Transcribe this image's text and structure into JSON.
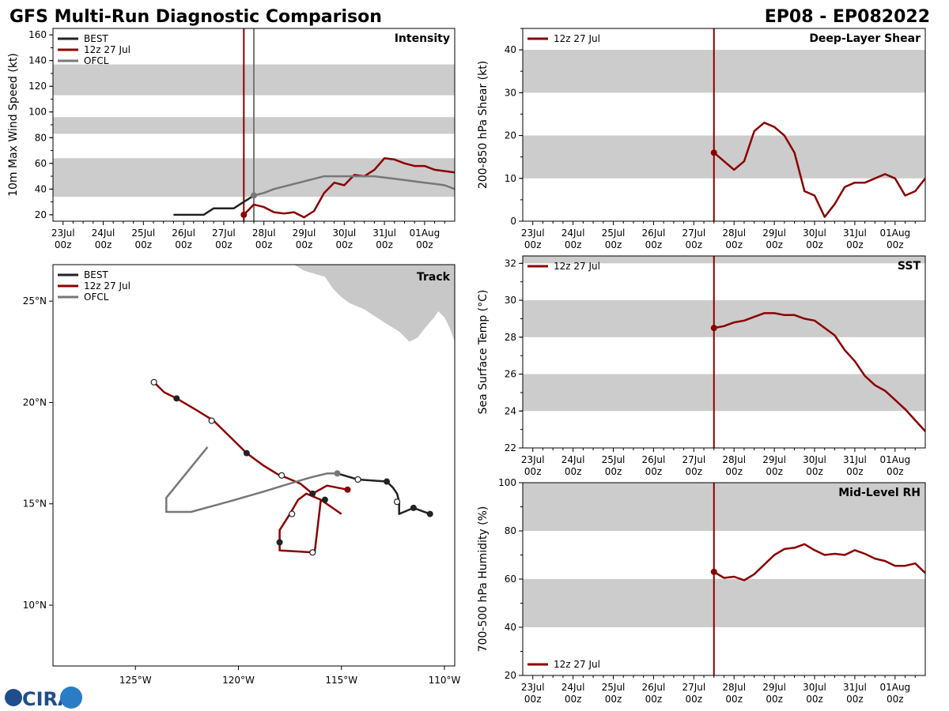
{
  "header": {
    "title_left": "GFS Multi-Run Diagnostic Comparison",
    "title_right": "EP08 - EP082022"
  },
  "logo": {
    "text": "CIRA"
  },
  "colors": {
    "best": "#222222",
    "run": "#8b0000",
    "ofcl": "#777777",
    "band": "#cccccc",
    "land": "#c8c8c8"
  },
  "time_axis": {
    "ticks": [
      {
        "t": 0,
        "label": "23Jul\n00z"
      },
      {
        "t": 24,
        "label": "24Jul\n00z"
      },
      {
        "t": 48,
        "label": "25Jul\n00z"
      },
      {
        "t": 72,
        "label": "26Jul\n00z"
      },
      {
        "t": 96,
        "label": "27Jul\n00z"
      },
      {
        "t": 120,
        "label": "28Jul\n00z"
      },
      {
        "t": 144,
        "label": "29Jul\n00z"
      },
      {
        "t": 168,
        "label": "30Jul\n00z"
      },
      {
        "t": 192,
        "label": "31Jul\n00z"
      },
      {
        "t": 216,
        "label": "01Aug\n00z"
      }
    ]
  },
  "chart_data": [
    {
      "id": "intensity",
      "type": "line",
      "title": "Intensity",
      "ylabel": "10m Max Wind Speed (kt)",
      "xlim": [
        -6,
        234
      ],
      "ylim": [
        15,
        165
      ],
      "yticks": [
        20,
        40,
        60,
        80,
        100,
        120,
        140,
        160
      ],
      "bands": [
        [
          34,
          64
        ],
        [
          83,
          96
        ],
        [
          113,
          137
        ]
      ],
      "vlines": [
        {
          "t": 108,
          "series": "run"
        },
        {
          "t": 114,
          "series": "ofcl"
        }
      ],
      "legend": [
        "BEST",
        "12z 27 Jul",
        "OFCL"
      ],
      "series": [
        {
          "name": "BEST",
          "key": "best",
          "t": [
            66,
            72,
            78,
            84,
            90,
            96,
            102,
            108,
            114
          ],
          "v": [
            20,
            20,
            20,
            20,
            25,
            25,
            25,
            30,
            35
          ]
        },
        {
          "name": "12z 27 Jul",
          "key": "run",
          "t": [
            108,
            114,
            120,
            126,
            132,
            138,
            144,
            150,
            156,
            162,
            168,
            174,
            180,
            186,
            192,
            198,
            204,
            210,
            216,
            222,
            228,
            234
          ],
          "v": [
            20,
            28,
            26,
            22,
            21,
            22,
            18,
            23,
            37,
            45,
            43,
            51,
            50,
            55,
            64,
            63,
            60,
            58,
            58,
            55,
            54,
            53
          ]
        },
        {
          "name": "OFCL",
          "key": "ofcl",
          "t": [
            114,
            120,
            126,
            132,
            138,
            144,
            150,
            156,
            162,
            168,
            174,
            180,
            186,
            192,
            198,
            204,
            210,
            216,
            222,
            228,
            234
          ],
          "v": [
            35,
            37,
            40,
            42,
            44,
            46,
            48,
            50,
            50,
            50,
            50,
            50,
            50,
            49,
            48,
            47,
            46,
            45,
            44,
            43,
            40
          ]
        }
      ],
      "markers": [
        {
          "key": "run",
          "t": 108,
          "v": 20
        },
        {
          "key": "ofcl",
          "t": 114,
          "v": 35
        }
      ]
    },
    {
      "id": "shear",
      "type": "line",
      "title": "Deep-Layer Shear",
      "ylabel": "200-850 hPa Shear (kt)",
      "xlim": [
        -6,
        234
      ],
      "ylim": [
        0,
        45
      ],
      "yticks": [
        0,
        10,
        20,
        30,
        40
      ],
      "bands": [
        [
          10,
          20
        ],
        [
          30,
          40
        ]
      ],
      "vlines": [
        {
          "t": 108,
          "series": "run"
        }
      ],
      "legend": [
        "12z 27 Jul"
      ],
      "series": [
        {
          "name": "12z 27 Jul",
          "key": "run",
          "t": [
            108,
            114,
            120,
            126,
            132,
            138,
            144,
            150,
            156,
            162,
            168,
            174,
            180,
            186,
            192,
            198,
            204,
            210,
            216,
            222,
            228,
            234
          ],
          "v": [
            16,
            14,
            12,
            14,
            21,
            23,
            22,
            20,
            16,
            7,
            6,
            1,
            4,
            8,
            9,
            9,
            10,
            11,
            10,
            6,
            7,
            10
          ]
        }
      ],
      "markers": [
        {
          "key": "run",
          "t": 108,
          "v": 16
        }
      ]
    },
    {
      "id": "sst",
      "type": "line",
      "title": "SST",
      "ylabel": "Sea Surface Temp (°C)",
      "xlim": [
        -6,
        234
      ],
      "ylim": [
        22,
        32.4
      ],
      "yticks": [
        22,
        24,
        26,
        28,
        30,
        32
      ],
      "bands": [
        [
          24,
          26
        ],
        [
          28,
          30
        ],
        [
          32,
          33
        ]
      ],
      "vlines": [
        {
          "t": 108,
          "series": "run"
        }
      ],
      "legend": [
        "12z 27 Jul"
      ],
      "series": [
        {
          "name": "12z 27 Jul",
          "key": "run",
          "t": [
            108,
            114,
            120,
            126,
            132,
            138,
            144,
            150,
            156,
            162,
            168,
            174,
            180,
            186,
            192,
            198,
            204,
            210,
            216,
            222,
            228,
            234
          ],
          "v": [
            28.5,
            28.6,
            28.8,
            28.9,
            29.1,
            29.3,
            29.3,
            29.2,
            29.2,
            29.0,
            28.9,
            28.5,
            28.1,
            27.3,
            26.7,
            25.9,
            25.4,
            25.1,
            24.6,
            24.1,
            23.5,
            22.9
          ]
        }
      ],
      "markers": [
        {
          "key": "run",
          "t": 108,
          "v": 28.5
        }
      ]
    },
    {
      "id": "rh",
      "type": "line",
      "title": "Mid-Level RH",
      "ylabel": "700-500 hPa Humidity (%)",
      "xlim": [
        -6,
        234
      ],
      "ylim": [
        20,
        100
      ],
      "yticks": [
        20,
        40,
        60,
        80,
        100
      ],
      "bands": [
        [
          40,
          60
        ],
        [
          80,
          100
        ]
      ],
      "vlines": [
        {
          "t": 108,
          "series": "run"
        }
      ],
      "legend": [
        "12z 27 Jul"
      ],
      "legend_position": "bottom-left",
      "series": [
        {
          "name": "12z 27 Jul",
          "key": "run",
          "t": [
            108,
            114,
            120,
            126,
            132,
            138,
            144,
            150,
            156,
            162,
            168,
            174,
            180,
            186,
            192,
            198,
            204,
            210,
            216,
            222,
            228,
            234
          ],
          "v": [
            63,
            60.5,
            61,
            59.5,
            62,
            66,
            70,
            72.5,
            73,
            74.5,
            72,
            70,
            70.5,
            70,
            72,
            70.5,
            68.5,
            67.5,
            65.5,
            65.5,
            66.5,
            62.5
          ]
        }
      ],
      "markers": [
        {
          "key": "run",
          "t": 108,
          "v": 63
        }
      ]
    },
    {
      "id": "track",
      "type": "map",
      "title": "Track",
      "lon_range": [
        -129,
        -109.5
      ],
      "lat_range": [
        7,
        26.8
      ],
      "xticks": [
        {
          "v": -125,
          "label": "125°W"
        },
        {
          "v": -120,
          "label": "120°W"
        },
        {
          "v": -115,
          "label": "115°W"
        },
        {
          "v": -110,
          "label": "110°W"
        }
      ],
      "yticks": [
        {
          "v": 10,
          "label": "10°N"
        },
        {
          "v": 15,
          "label": "15°N"
        },
        {
          "v": 20,
          "label": "20°N"
        },
        {
          "v": 25,
          "label": "25°N"
        }
      ],
      "legend": [
        "BEST",
        "12z 27 Jul",
        "OFCL"
      ],
      "series": [
        {
          "name": "BEST",
          "key": "best",
          "lon": [
            -110.7,
            -111.5,
            -112.2,
            -112.2,
            -112.3,
            -112.5,
            -112.8,
            -114.2,
            -115.2
          ],
          "lat": [
            14.5,
            14.8,
            14.5,
            15.1,
            15.5,
            15.8,
            16.1,
            16.2,
            16.5
          ],
          "filled": [
            [
              -110.7,
              14.5
            ],
            [
              -111.5,
              14.8
            ],
            [
              -112.8,
              16.1
            ]
          ],
          "open": [
            [
              -112.3,
              15.1
            ],
            [
              -114.2,
              16.2
            ]
          ]
        },
        {
          "name": "12z 27 Jul",
          "key": "run",
          "lon": [
            -114.7,
            -115.7,
            -116.4,
            -117.0,
            -117.7,
            -118.0,
            -118.8,
            -119.6,
            -120.5,
            -121.2,
            -122.0,
            -123.0,
            -123.6,
            -124.1
          ],
          "lat": [
            15.7,
            15.9,
            15.5,
            16.0,
            16.3,
            16.4,
            16.9,
            17.5,
            18.4,
            19.1,
            19.6,
            20.2,
            20.5,
            21.0
          ],
          "filled": [
            [
              -114.7,
              15.7
            ],
            [
              -119.6,
              17.5
            ],
            [
              -123.0,
              20.2
            ]
          ],
          "open": [
            [
              -117.9,
              16.4
            ],
            [
              -121.3,
              19.1
            ],
            [
              -124.1,
              21.0
            ]
          ]
        },
        {
          "name": "12z 27 Jul loop",
          "key": "run",
          "lon": [
            -115.0,
            -116.0,
            -116.7,
            -117.1,
            -117.5,
            -118.0,
            -118.0,
            -116.3,
            -116.0,
            -115.0
          ],
          "lat": [
            14.5,
            15.2,
            15.5,
            15.2,
            14.5,
            13.7,
            12.7,
            12.6,
            15.2,
            14.5
          ],
          "filled": [
            [
              -116.4,
              15.5
            ],
            [
              -115.8,
              15.2
            ],
            [
              -118.0,
              13.1
            ]
          ],
          "open": [
            [
              -117.4,
              14.5
            ],
            [
              -116.4,
              12.6
            ]
          ]
        },
        {
          "name": "OFCL",
          "key": "ofcl",
          "lon": [
            -115.2,
            -115.7,
            -116.5,
            -117.5,
            -118.8,
            -120.5,
            -122.3,
            -123.5,
            -123.5,
            -121.5
          ],
          "lat": [
            16.5,
            16.5,
            16.3,
            16.0,
            15.6,
            15.1,
            14.6,
            14.6,
            15.3,
            17.8
          ],
          "filled": [
            [
              -115.2,
              16.5
            ]
          ],
          "open": []
        }
      ]
    }
  ]
}
